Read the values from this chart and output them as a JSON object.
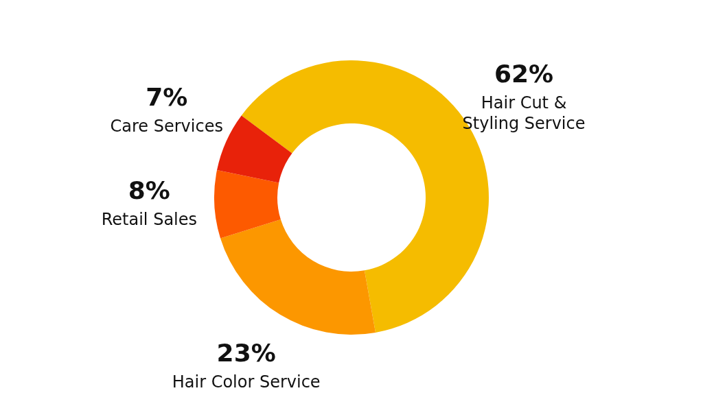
{
  "chart_data": {
    "type": "donut",
    "categories": [
      "Hair Cut & Styling Service",
      "Hair Color Service",
      "Retail Sales",
      "Care Services"
    ],
    "values": [
      62,
      23,
      8,
      7
    ],
    "colors": [
      "#f5bc00",
      "#fc9700",
      "#fd5a00",
      "#e8220a"
    ],
    "value_labels": [
      "62%",
      "23%",
      "8%",
      "7%"
    ]
  }
}
